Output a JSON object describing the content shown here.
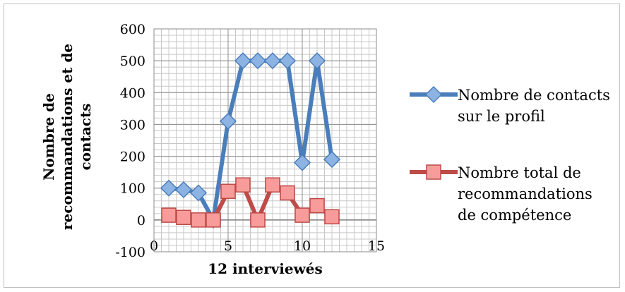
{
  "chart_data": {
    "type": "line",
    "xlabel": "12 interviewés",
    "ylabel": [
      "Nombre de",
      "recommandations et de",
      "contacts"
    ],
    "xlim": [
      0,
      15
    ],
    "ylim": [
      -100,
      600
    ],
    "x_ticks": [
      0,
      5,
      10,
      15
    ],
    "y_ticks": [
      -100,
      0,
      100,
      200,
      300,
      400,
      500,
      600
    ],
    "x_minor_step": 0.5,
    "y_minor_step": 20,
    "grid": true,
    "legend_position": "right",
    "series": [
      {
        "name": "Nombre de contacts sur le profil",
        "legend_lines": [
          "Nombre de contacts",
          "sur le profil"
        ],
        "color": "#4A7EBB",
        "marker_color": "#8DB3E2",
        "marker": "diamond",
        "x": [
          1,
          2,
          3,
          4,
          5,
          6,
          7,
          8,
          9,
          10,
          11,
          12
        ],
        "values": [
          100,
          95,
          85,
          0,
          310,
          500,
          500,
          500,
          500,
          180,
          500,
          190
        ]
      },
      {
        "name": "Nombre total de recommandations de compétence",
        "legend_lines": [
          "Nombre total de",
          "recommandations",
          "de compétence"
        ],
        "color": "#BE4B48",
        "marker_color": "#F79C9A",
        "marker": "square",
        "x": [
          1,
          2,
          3,
          4,
          5,
          6,
          7,
          8,
          9,
          10,
          11,
          12
        ],
        "values": [
          15,
          8,
          0,
          0,
          90,
          110,
          0,
          110,
          85,
          15,
          45,
          10
        ]
      }
    ]
  }
}
